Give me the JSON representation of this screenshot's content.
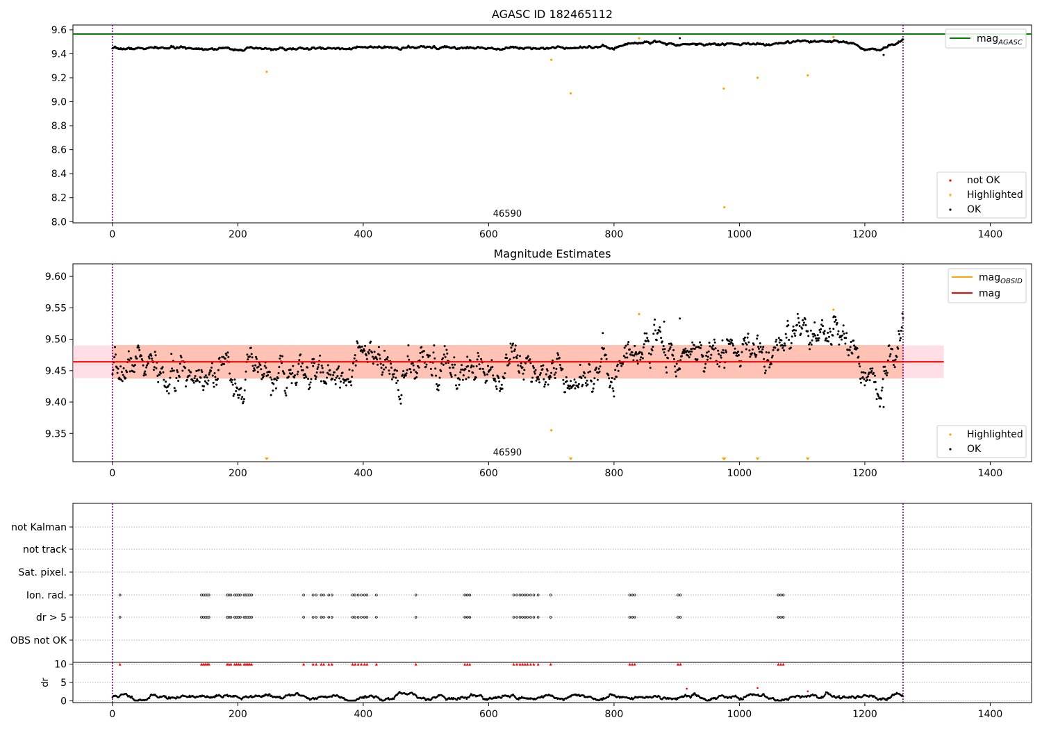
{
  "colors": {
    "ok": "#000000",
    "highlighted": "#ffa500",
    "not_ok": "#ff0000",
    "agasc_line": "#008000",
    "mag_line": "#ff0000",
    "mag_obsid_line": "#ffa500",
    "band_pink": "#ffc0cb",
    "band_orange": "#ffa07a",
    "obsid_marker": "#800080",
    "grid": "#b0b0b0"
  },
  "chart_data": [
    {
      "type": "scatter",
      "title": "AGASC ID 182465112",
      "xlabel": "",
      "ylabel": "",
      "xlim": [
        -63,
        1466
      ],
      "ylim": [
        7.99,
        9.64
      ],
      "xticks": [
        0,
        200,
        400,
        600,
        800,
        1000,
        1200,
        1400
      ],
      "yticks": [
        8.0,
        8.2,
        8.4,
        8.6,
        8.8,
        9.0,
        9.2,
        9.4,
        9.6
      ],
      "ytick_labels": [
        "8.0",
        "8.2",
        "8.4",
        "8.6",
        "8.8",
        "9.0",
        "9.2",
        "9.4",
        "9.6"
      ],
      "hlines": [
        {
          "name": "mag_AGASC",
          "y": 9.565
        }
      ],
      "obsid_boundaries": [
        0,
        1261
      ],
      "obsid_label": "46590",
      "ok_series": {
        "name": "OK",
        "n_points": 1262,
        "profile_x": [
          0,
          100,
          200,
          300,
          400,
          500,
          600,
          700,
          760,
          800,
          830,
          860,
          900,
          950,
          1000,
          1050,
          1100,
          1150,
          1180,
          1200,
          1230,
          1261
        ],
        "profile_y": [
          9.44,
          9.45,
          9.44,
          9.44,
          9.45,
          9.45,
          9.45,
          9.45,
          9.46,
          9.45,
          9.49,
          9.5,
          9.48,
          9.48,
          9.48,
          9.48,
          9.5,
          9.5,
          9.49,
          9.43,
          9.45,
          9.51
        ],
        "scatter": 0.008,
        "outliers": [
          [
            1230,
            9.39
          ],
          [
            905,
            9.53
          ],
          [
            1150,
            9.54
          ]
        ]
      },
      "highlighted": {
        "name": "Highlighted",
        "x": [
          246,
          700,
          731,
          975,
          976,
          1029,
          1109,
          840,
          1150
        ],
        "y": [
          9.25,
          9.35,
          9.07,
          9.11,
          8.12,
          9.2,
          9.22,
          9.53,
          9.54
        ]
      },
      "legend_lines": {
        "items": [
          {
            "label_main": "mag",
            "label_sub": "AGASC"
          }
        ],
        "placement": "upper right"
      },
      "legend_points": {
        "items": [
          "not OK",
          "Highlighted",
          "OK"
        ],
        "placement": "lower right"
      }
    },
    {
      "type": "scatter",
      "title": "Magnitude Estimates",
      "xlabel": "",
      "ylabel": "",
      "xlim": [
        -63,
        1466
      ],
      "ylim": [
        9.305,
        9.62
      ],
      "xticks": [
        0,
        200,
        400,
        600,
        800,
        1000,
        1200,
        1400
      ],
      "yticks": [
        9.35,
        9.4,
        9.45,
        9.5,
        9.55,
        9.6
      ],
      "ytick_labels": [
        "9.35",
        "9.40",
        "9.45",
        "9.50",
        "9.55",
        "9.60"
      ],
      "mag": 9.464,
      "band_pink": [
        9.438,
        9.49
      ],
      "band_orange": [
        9.438,
        9.49
      ],
      "band_x_range": [
        -63,
        1326
      ],
      "obsid_boundaries": [
        0,
        1261
      ],
      "obsid_label": "46590",
      "ok_series": {
        "name": "OK",
        "n_points": 1262,
        "profile_x": [
          0,
          40,
          90,
          150,
          200,
          250,
          300,
          350,
          400,
          450,
          500,
          560,
          600,
          650,
          700,
          760,
          800,
          830,
          860,
          900,
          950,
          1000,
          1050,
          1100,
          1150,
          1180,
          1200,
          1230,
          1261
        ],
        "profile_y": [
          9.43,
          9.47,
          9.43,
          9.46,
          9.44,
          9.44,
          9.44,
          9.44,
          9.47,
          9.44,
          9.45,
          9.45,
          9.46,
          9.47,
          9.45,
          9.45,
          9.45,
          9.48,
          9.5,
          9.48,
          9.48,
          9.48,
          9.48,
          9.5,
          9.5,
          9.49,
          9.43,
          9.45,
          9.51
        ],
        "scatter": 0.022,
        "outliers": [
          [
            1230,
            9.392
          ],
          [
            905,
            9.533
          ],
          [
            1150,
            9.535
          ],
          [
            880,
            9.528
          ]
        ]
      },
      "highlighted": {
        "name": "Highlighted",
        "x": [
          700,
          840,
          1150
        ],
        "y": [
          9.355,
          9.54,
          9.547
        ],
        "below_range_x": [
          246,
          731,
          975,
          976,
          1029,
          1109
        ]
      },
      "legend_lines": {
        "items": [
          {
            "label_main": "mag",
            "label_sub": "OBSID"
          },
          {
            "label_main": "mag",
            "label_sub": ""
          }
        ],
        "placement": "upper right"
      },
      "legend_points": {
        "items": [
          "Highlighted",
          "OK"
        ],
        "placement": "lower right"
      }
    },
    {
      "type": "scatter",
      "title": "",
      "xlabel": "",
      "ylabel": "",
      "xlim": [
        -63,
        1466
      ],
      "flag_rows": [
        "not Kalman",
        "not track",
        "Sat. pixel.",
        "Ion. rad.",
        "dr > 5",
        "OBS not OK"
      ],
      "flag_x": [
        12,
        142,
        145,
        148,
        151,
        154,
        183,
        186,
        189,
        195,
        198,
        201,
        204,
        210,
        213,
        216,
        219,
        222,
        305,
        320,
        325,
        333,
        337,
        345,
        350,
        383,
        387,
        392,
        397,
        402,
        406,
        421,
        484,
        562,
        566,
        570,
        640,
        645,
        650,
        654,
        658,
        662,
        667,
        672,
        679,
        699,
        825,
        829,
        833,
        902,
        906,
        1062,
        1066,
        1070
      ],
      "flag_rows_active": [
        "Ion. rad.",
        "dr > 5"
      ],
      "obsid_boundaries": [
        0,
        1261
      ]
    },
    {
      "type": "scatter",
      "title": "",
      "xlabel": "",
      "ylabel": "dr",
      "xlim": [
        -63,
        1466
      ],
      "ylim": [
        -0.5,
        10.5
      ],
      "yticks": [
        0,
        5,
        10
      ],
      "ytick_labels": [
        "0",
        "5",
        "10"
      ],
      "dr_profile_x": [
        0,
        100,
        200,
        300,
        400,
        500,
        600,
        700,
        800,
        900,
        1000,
        1100,
        1200,
        1261
      ],
      "dr_profile_y": [
        1.0,
        1.1,
        1.2,
        1.1,
        1.0,
        1.1,
        1.0,
        1.0,
        1.0,
        1.0,
        1.0,
        1.0,
        1.3,
        1.0
      ],
      "dr_outliers": [
        [
          916,
          3.3
        ],
        [
          1029,
          3.5
        ],
        [
          1109,
          2.6
        ]
      ],
      "capped_value": 10,
      "obsid_boundaries": [
        0,
        1261
      ]
    }
  ]
}
